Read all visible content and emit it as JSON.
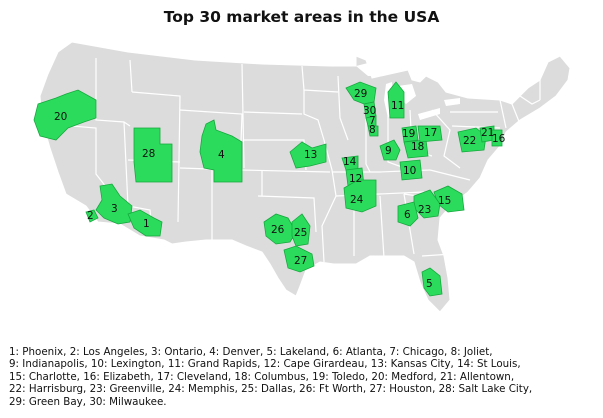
{
  "title": "Top 30 market areas in the USA",
  "colors": {
    "land": "#dcdcdc",
    "state_border": "#ffffff",
    "market_area": "#2bdc5c",
    "market_border": "#16a83e"
  },
  "markets": [
    {
      "id": "1",
      "name": "Phoenix"
    },
    {
      "id": "2",
      "name": "Los Angeles"
    },
    {
      "id": "3",
      "name": "Ontario"
    },
    {
      "id": "4",
      "name": "Denver"
    },
    {
      "id": "5",
      "name": "Lakeland"
    },
    {
      "id": "6",
      "name": "Atlanta"
    },
    {
      "id": "7",
      "name": "Chicago"
    },
    {
      "id": "8",
      "name": "Joliet"
    },
    {
      "id": "9",
      "name": "Indianapolis"
    },
    {
      "id": "10",
      "name": "Lexington"
    },
    {
      "id": "11",
      "name": "Grand Rapids"
    },
    {
      "id": "12",
      "name": "Cape Girardeau"
    },
    {
      "id": "13",
      "name": "Kansas City"
    },
    {
      "id": "14",
      "name": "St Louis"
    },
    {
      "id": "15",
      "name": "Charlotte"
    },
    {
      "id": "16",
      "name": "Elizabeth"
    },
    {
      "id": "17",
      "name": "Cleveland"
    },
    {
      "id": "18",
      "name": "Columbus"
    },
    {
      "id": "19",
      "name": "Toledo"
    },
    {
      "id": "20",
      "name": "Medford"
    },
    {
      "id": "21",
      "name": "Allentown"
    },
    {
      "id": "22",
      "name": "Harrisburg"
    },
    {
      "id": "23",
      "name": "Greenville"
    },
    {
      "id": "24",
      "name": "Memphis"
    },
    {
      "id": "25",
      "name": "Dallas"
    },
    {
      "id": "26",
      "name": "Ft Worth"
    },
    {
      "id": "27",
      "name": "Houston"
    },
    {
      "id": "28",
      "name": "Salt Lake City"
    },
    {
      "id": "29",
      "name": "Green Bay"
    },
    {
      "id": "30",
      "name": "Milwaukee"
    }
  ],
  "legend_lines": [
    "1: Phoenix, 2: Los Angeles, 3: Ontario, 4: Denver, 5: Lakeland, 6: Atlanta, 7: Chicago, 8: Joliet,",
    "9: Indianapolis, 10: Lexington, 11: Grand Rapids, 12: Cape Girardeau, 13: Kansas City, 14: St Louis,",
    "15: Charlotte, 16: Elizabeth, 17: Cleveland, 18: Columbus, 19: Toledo, 20: Medford, 21: Allentown,",
    "22: Harrisburg, 23: Greenville, 24: Memphis, 25: Dallas, 26: Ft Worth, 27: Houston, 28: Salt Lake City,",
    "29: Green Bay, 30: Milwaukee."
  ]
}
